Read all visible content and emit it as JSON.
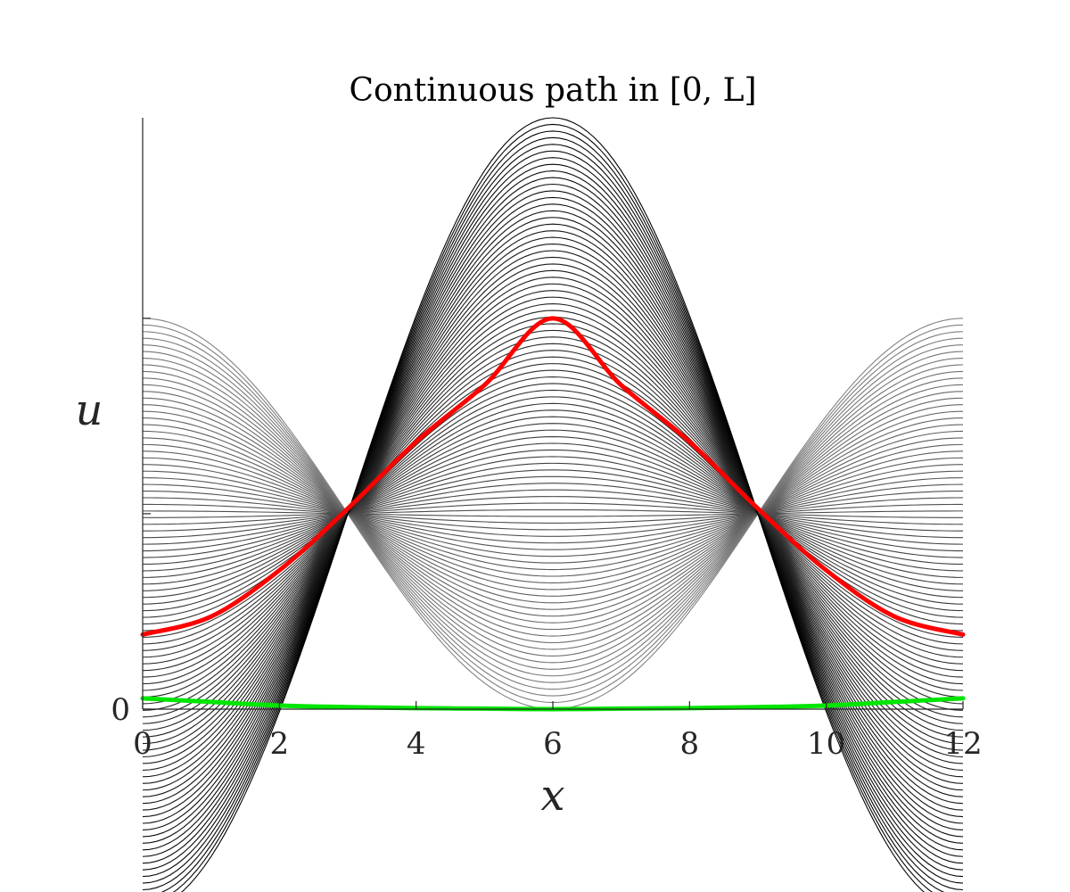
{
  "chart_data": {
    "type": "line",
    "title": "Continuous path in [0, L]",
    "xlabel": "x",
    "ylabel": "u",
    "xlim": [
      0,
      12
    ],
    "ylim": [
      0,
      1.15
    ],
    "x_ticks": [
      "0",
      "2",
      "4",
      "6",
      "8",
      "10",
      "12"
    ],
    "y_ticks": [
      "0"
    ],
    "y_tick_marks_unlabeled": [
      0.38,
      0.76
    ],
    "grid": false,
    "legend": "none",
    "family": {
      "count": 90,
      "description_units": "u(x) = 0.38 - a*cos(2*pi*x/12), a from -0.38 (bottom) to 0.77 (top)",
      "mean": 0.38,
      "amplitude_min": -0.38,
      "amplitude_max": 0.77,
      "color_light": "#9a9a9a",
      "color_dark": "#000000"
    },
    "series": [
      {
        "color": "#ff0000",
        "x": [
          0,
          1,
          2,
          3,
          4,
          5,
          6,
          7,
          8,
          9,
          10,
          11,
          12
        ],
        "y": [
          0.145,
          0.18,
          0.27,
          0.39,
          0.52,
          0.63,
          0.76,
          0.63,
          0.52,
          0.39,
          0.27,
          0.18,
          0.145
        ]
      },
      {
        "color": "#00e600",
        "x": [
          0,
          1,
          2,
          3,
          4,
          5,
          6,
          7,
          8,
          9,
          10,
          11,
          12
        ],
        "y": [
          0.021,
          0.014,
          0.007,
          0.004,
          0.002,
          0.001,
          0.0,
          0.001,
          0.002,
          0.004,
          0.007,
          0.014,
          0.021
        ]
      }
    ]
  }
}
